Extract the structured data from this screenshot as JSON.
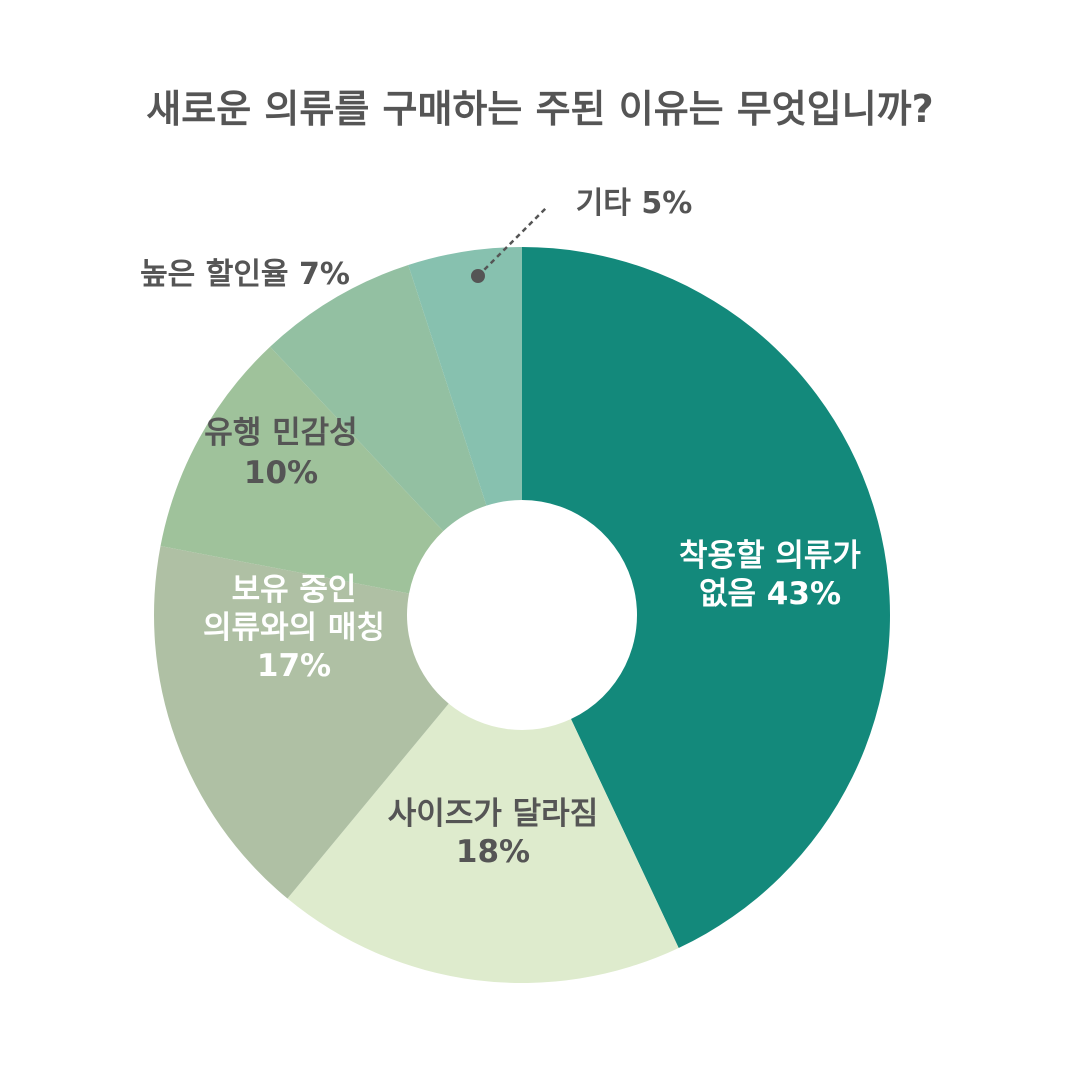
{
  "title": "새로운 의류를 구매하는 주된 이유는 무엇입니까?",
  "chart_data": {
    "type": "pie",
    "variant": "donut",
    "title": "새로운 의류를 구매하는 주된 이유는 무엇입니까?",
    "slices": [
      {
        "label_lines": [
          "착용할 의류가",
          "없음 43%"
        ],
        "category": "착용할 의류가 없음",
        "value": 43,
        "color": "#13897b",
        "text_color": "#ffffff"
      },
      {
        "label_lines": [
          "사이즈가 달라짐",
          "18%"
        ],
        "category": "사이즈가 달라짐",
        "value": 18,
        "color": "#deebcd",
        "text_color": "#555555"
      },
      {
        "label_lines": [
          "보유 중인",
          "의류와의 매칭",
          "17%"
        ],
        "category": "보유 중인 의류와의 매칭",
        "value": 17,
        "color": "#afc0a4",
        "text_color": "#ffffff"
      },
      {
        "label_lines": [
          "유행 민감성",
          "10%"
        ],
        "category": "유행 민감성",
        "value": 10,
        "color": "#9fc29b",
        "text_color": "#555555"
      },
      {
        "label_lines": [
          "높은 할인율 7%"
        ],
        "category": "높은 할인율",
        "value": 7,
        "color": "#93c0a2",
        "text_color": "#555555"
      },
      {
        "label_lines": [
          "기타 5%"
        ],
        "category": "기타",
        "value": 5,
        "color": "#87c1af",
        "text_color": "#555555"
      }
    ]
  }
}
